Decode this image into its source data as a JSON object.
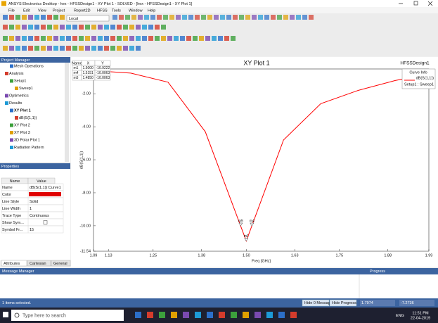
{
  "window": {
    "title": "ANSYS Electronics Desktop - hex - HFSSDesign1 - XY Plot 1 - SOLVED - [hex - HFSSDesign1 - XY Plot 1]",
    "menu": [
      "File",
      "Edit",
      "View",
      "Project",
      "Report2D",
      "HFSS",
      "Tools",
      "Window",
      "Help"
    ],
    "solution_dropdown": "Local"
  },
  "project_manager": {
    "title": "Project Manager",
    "tree": [
      "Mesh Operations",
      "Analysis",
      "Setup1",
      "Sweep1",
      "Optimetrics",
      "Results",
      "XY Plot 1",
      "dB(S(1,1))",
      "XY Plot 2",
      "XY Plot 3",
      "3D Polar Plot 1",
      "Radiation Pattern"
    ]
  },
  "properties": {
    "title": "Properties",
    "columns": [
      "Name",
      "Value"
    ],
    "rows": [
      {
        "name": "Name",
        "value": "dB(S(1,1)):Curve1"
      },
      {
        "name": "Color",
        "swatch": "#e00000"
      },
      {
        "name": "Line Style",
        "value": "Solid"
      },
      {
        "name": "Line Width",
        "value": "1"
      },
      {
        "name": "Trace Type",
        "value": "Continuous"
      },
      {
        "name": "Show Sym...",
        "checkbox": false
      },
      {
        "name": "Symbol Fr...",
        "value": "15"
      }
    ],
    "tabs": [
      "Attributes",
      "Cartesian",
      "General"
    ]
  },
  "chart_data": {
    "type": "line",
    "title": "XY Plot 1",
    "design": "HFSSDesign1",
    "x_label": "Freq [GHz]",
    "y_label": "dB(S(1,1))",
    "x": [
      1.09,
      1.19,
      1.29,
      1.39,
      1.5,
      1.6,
      1.7,
      1.8,
      1.9,
      1.99
    ],
    "series": [
      {
        "name": "dB(S(1,1))",
        "color": "#ff0000",
        "values": [
          -0.6,
          -0.75,
          -1.3,
          -4.3,
          -10.92,
          -4.8,
          -2.6,
          -1.8,
          -1.2,
          -0.8
        ]
      }
    ],
    "legend_title": "Curve Info",
    "legend_subtitle": "Setup1 : Sweep1",
    "xlim": [
      1.09,
      1.99
    ],
    "xticks": [
      1.09,
      1.13,
      1.25,
      1.38,
      {
        "value": 1.5,
        "label": "1.50"
      },
      1.63,
      1.75,
      1.88,
      1.99
    ],
    "ylim": [
      -11.54,
      -0.5
    ],
    "yticks": [
      -11.54,
      {
        "value": -10,
        "label": "-10.00"
      },
      {
        "value": -8,
        "label": "-8.00"
      },
      {
        "value": -6,
        "label": "-6.00"
      },
      {
        "value": -4,
        "label": "-4.00"
      },
      {
        "value": -2,
        "label": "-2.00"
      }
    ],
    "grid": false,
    "marker_columns": [
      "Name",
      "X",
      "Y"
    ],
    "markers": [
      {
        "name": "m1",
        "x": 1.5,
        "y": -10.9222,
        "x_label": "1.5000",
        "y_label": "-10.9222"
      },
      {
        "name": "m4",
        "x": 1.5151,
        "y": -10.0063,
        "x_label": "1.5151",
        "y_label": "-10.0063"
      },
      {
        "name": "m5",
        "x": 1.485,
        "y": -10.0063,
        "x_label": "1.4850",
        "y_label": "-10.0063"
      }
    ]
  },
  "message_manager": {
    "title": "Message Manager",
    "progress_title": "Progress",
    "status": "1 items selected.",
    "buttons": [
      "Hide 0 Messages",
      "Hide Progress"
    ],
    "cursor": [
      "1.7974",
      "-7.2736"
    ]
  },
  "taskbar": {
    "search": "Type here to search",
    "language": "ENG",
    "time": "11:51 PM",
    "date": "22-04-2019"
  }
}
